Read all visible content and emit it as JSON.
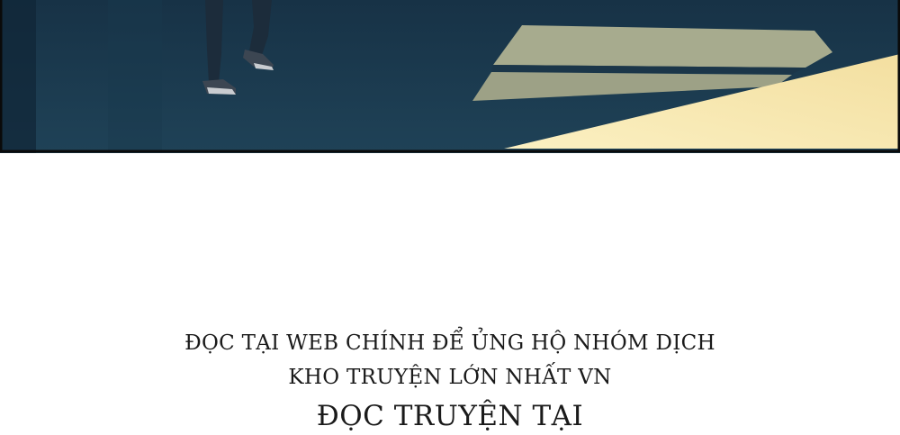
{
  "panel": {
    "description_icon": "comic-panel-image",
    "colors": {
      "background_dark": "#13293a",
      "background_mid": "#1e3d52",
      "light_beam": "#f6e8b0",
      "slab": "#b8b99a",
      "border": "#0a0a0a"
    }
  },
  "credits": {
    "line1": "ĐỌC TẠI WEB CHÍNH ĐỂ ỦNG HỘ NHÓM DỊCH",
    "line2": "KHO TRUYỆN LỚN NHẤT VN",
    "line3": "ĐỌC TRUYỆN TẠI"
  }
}
